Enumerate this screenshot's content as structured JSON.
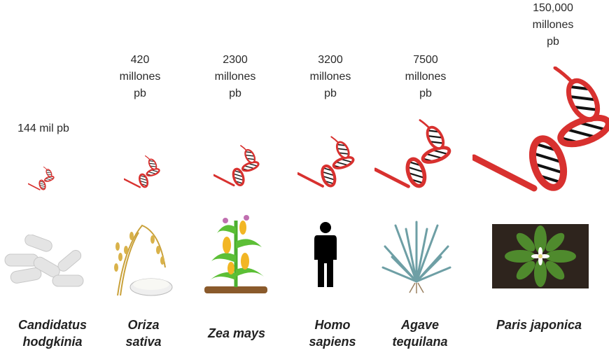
{
  "colors": {
    "helix": "#d8312f",
    "text": "#222222"
  },
  "organisms": [
    {
      "name_line1": "Candidatus",
      "name_line2": "hodgkinia",
      "size_line1": "144 mil pb",
      "size_line2": "",
      "size_line3": "",
      "image_icon": "bacteria-icon"
    },
    {
      "name_line1": "Oriza",
      "name_line2": "sativa",
      "size_line1": "420",
      "size_line2": "millones",
      "size_line3": "pb",
      "image_icon": "rice-icon"
    },
    {
      "name_line1": "Zea mays",
      "name_line2": "",
      "size_line1": "2300",
      "size_line2": "millones",
      "size_line3": "pb",
      "image_icon": "corn-plant-icon"
    },
    {
      "name_line1": "Homo",
      "name_line2": "sapiens",
      "size_line1": "3200",
      "size_line2": "millones",
      "size_line3": "pb",
      "image_icon": "human-silhouette-icon"
    },
    {
      "name_line1": "Agave",
      "name_line2": "tequilana",
      "size_line1": "7500",
      "size_line2": "millones",
      "size_line3": "pb",
      "image_icon": "agave-icon"
    },
    {
      "name_line1": "Paris japonica",
      "name_line2": "",
      "size_line1": "150,000",
      "size_line2": "millones",
      "size_line3": "pb",
      "image_icon": "paris-japonica-plant-icon"
    }
  ]
}
